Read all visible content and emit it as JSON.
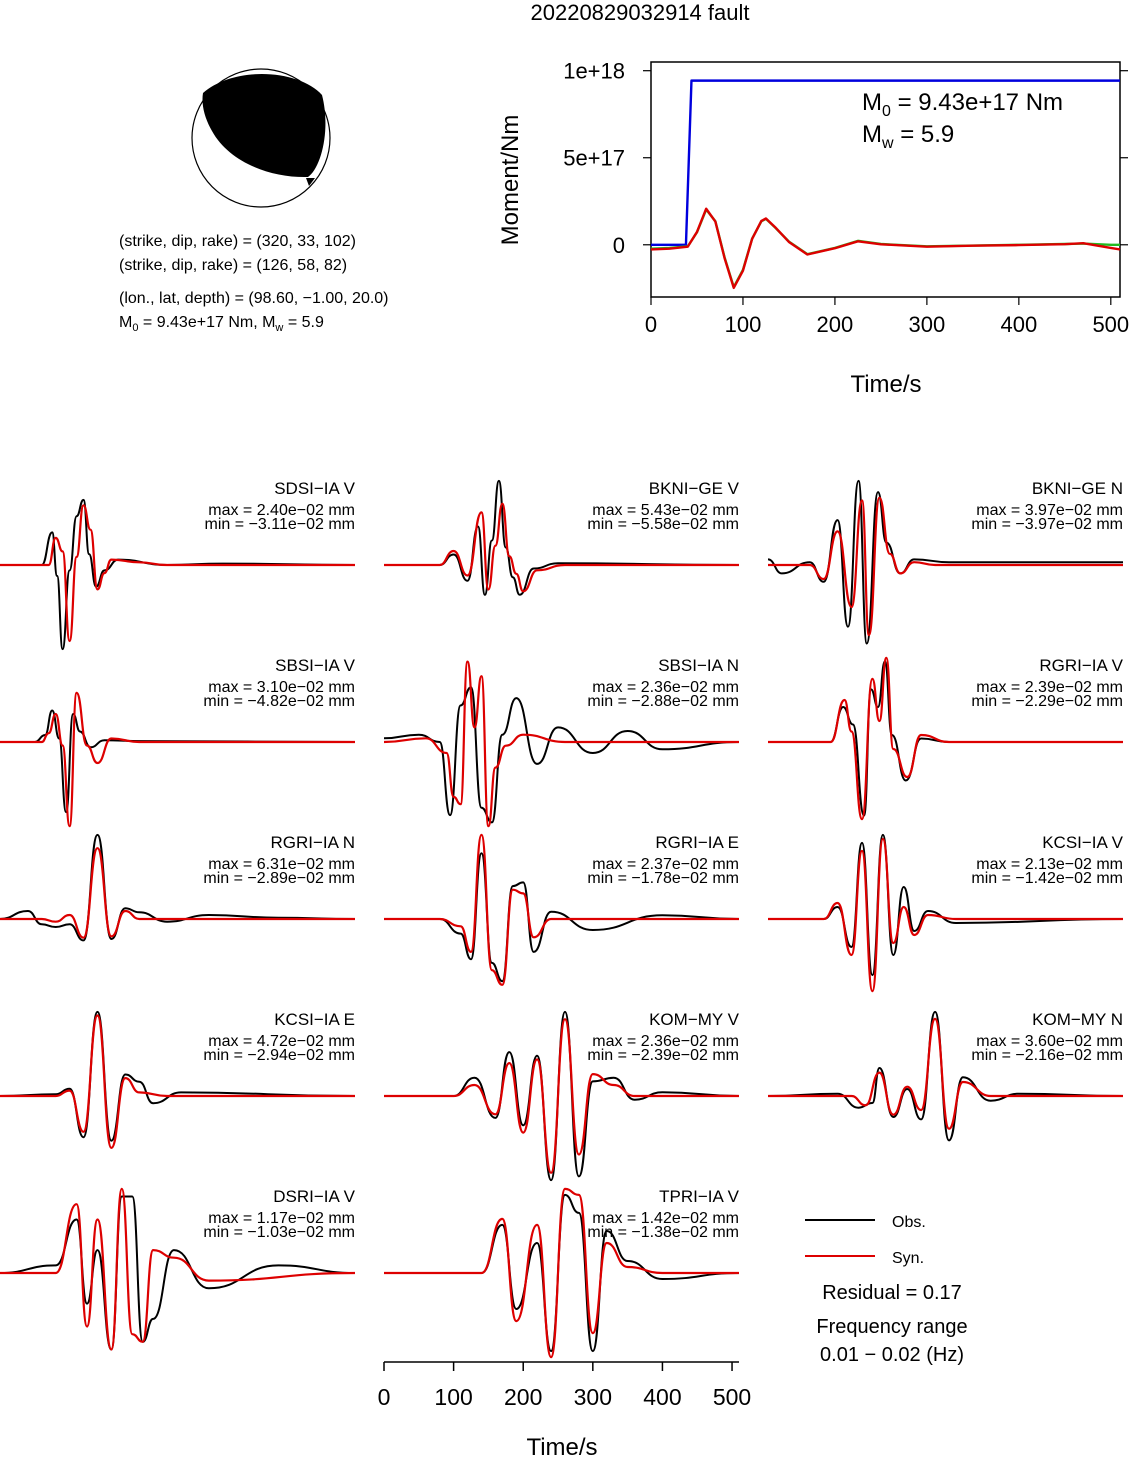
{
  "title": "20220829032914 fault",
  "mechanism": {
    "line1": "(strike, dip, rake) = (320, 33, 102)",
    "line2": "(strike, dip, rake) = (126, 58, 82)",
    "line3": "(lon., lat, depth) = (98.60, −1.00, 20.0)",
    "line4_prefix": "M",
    "line4_sub": "0",
    "line4_mid": " = 9.43e+17 Nm, M",
    "line4_sub2": "w",
    "line4_end": " = 5.9"
  },
  "moment_box": {
    "m0_prefix": "M",
    "m0_sub": "0",
    "m0_value": " = 9.43e+17 Nm",
    "mw_prefix": "M",
    "mw_sub": "w",
    "mw_value": " = 5.9"
  },
  "legend": {
    "obs": "Obs.",
    "syn": "Syn.",
    "residual": "Residual = 0.17",
    "freq_title": "Frequency range",
    "freq_value": "0.01 − 0.02 (Hz)"
  },
  "colors": {
    "obs": "#000000",
    "syn": "#dd0000",
    "cumulative": "#0000dd",
    "rate_green": "#22bb22"
  },
  "chart_data": [
    {
      "type": "line",
      "title": "",
      "xlabel": "Time/s",
      "ylabel": "Moment/Nm",
      "xlim": [
        0,
        510
      ],
      "ylim": [
        -300000000000000000,
        1050000000000000000
      ],
      "xticks": [
        "0",
        "100",
        "200",
        "300",
        "400",
        "500"
      ],
      "yticks": [
        "0",
        "5e+17",
        "1e+18"
      ],
      "series": [
        {
          "color": "#0000dd",
          "x": [
            0,
            38,
            44,
            510
          ],
          "y": [
            0,
            0,
            943000000000000000,
            943000000000000000
          ]
        },
        {
          "color": "#22bb22",
          "x": [
            0,
            20,
            40,
            50,
            60,
            70,
            80,
            90,
            100,
            110,
            120,
            125,
            135,
            150,
            170,
            200,
            225,
            250,
            300,
            350,
            400,
            450,
            470,
            500,
            510
          ],
          "y": [
            -25,
            -20,
            -10,
            80,
            225,
            150,
            -80,
            -270,
            -160,
            40,
            150,
            165,
            110,
            20,
            -60,
            -20,
            25,
            5,
            -10,
            -5,
            0,
            5,
            8,
            0,
            0
          ]
        },
        {
          "color": "#dd0000",
          "x": [
            0,
            20,
            40,
            50,
            60,
            70,
            80,
            90,
            100,
            110,
            120,
            125,
            135,
            150,
            170,
            200,
            225,
            250,
            300,
            350,
            400,
            450,
            470,
            500,
            510
          ],
          "y": [
            -30,
            -25,
            -12,
            82,
            230,
            148,
            -85,
            -275,
            -165,
            38,
            152,
            168,
            112,
            18,
            -62,
            -22,
            22,
            3,
            -12,
            -6,
            -2,
            4,
            10,
            -20,
            -30
          ]
        }
      ]
    },
    {
      "type": "line",
      "xlabel": "Time/s",
      "xlim": [
        0,
        510
      ],
      "xticks": [
        "0",
        "100",
        "200",
        "300",
        "400",
        "500"
      ],
      "panels": [
        {
          "station": "SDSI−IA V",
          "max": "max = 2.40e−02 mm",
          "min": "min = −3.11e−02 mm",
          "syn_x": [
            0,
            70,
            80,
            90,
            100,
            110,
            120,
            130,
            140,
            150,
            160,
            200,
            240,
            320,
            510
          ],
          "syn_y": [
            0,
            0,
            1.0,
            0.5,
            -2.8,
            0.3,
            2.2,
            1.3,
            -0.9,
            -0.3,
            0.2,
            0.1,
            0,
            0,
            0
          ],
          "obs_x": [
            0,
            60,
            75,
            82,
            90,
            100,
            110,
            120,
            128,
            138,
            150,
            170,
            240,
            320,
            510
          ],
          "obs_y": [
            0,
            0,
            1.2,
            -0.4,
            -3.1,
            -0.2,
            1.8,
            2.4,
            0.4,
            -0.8,
            -0.2,
            0.2,
            0,
            0.05,
            0
          ]
        },
        {
          "station": "BKNI−GE V",
          "max": "max = 5.43e−02 mm",
          "min": "min = −5.58e−02 mm",
          "syn_x": [
            0,
            80,
            100,
            120,
            140,
            150,
            160,
            170,
            180,
            190,
            200,
            220,
            260,
            510
          ],
          "syn_y": [
            0,
            0,
            0.8,
            -0.6,
            3.0,
            -1.4,
            1.1,
            3.5,
            0.5,
            -0.5,
            -1.5,
            -0.3,
            0,
            0
          ],
          "obs_x": [
            0,
            80,
            100,
            120,
            135,
            145,
            155,
            165,
            175,
            185,
            195,
            215,
            250,
            510
          ],
          "obs_y": [
            0,
            0,
            0.6,
            -0.9,
            2.2,
            -1.7,
            1.4,
            4.8,
            1.0,
            -0.7,
            -1.7,
            -0.2,
            0.1,
            0
          ]
        },
        {
          "station": "BKNI−GE N",
          "max": "max = 3.97e−02 mm",
          "min": "min = −3.97e−02 mm",
          "syn_x": [
            0,
            60,
            80,
            100,
            120,
            135,
            145,
            160,
            175,
            190,
            210,
            240,
            510
          ],
          "syn_y": [
            0,
            0,
            -0.5,
            1.2,
            -1.5,
            2.3,
            -2.5,
            2.4,
            0.4,
            -0.3,
            0.1,
            0,
            0
          ],
          "obs_x": [
            0,
            20,
            60,
            80,
            100,
            115,
            130,
            142,
            158,
            170,
            190,
            210,
            260,
            510
          ],
          "obs_y": [
            0.2,
            -0.3,
            0.1,
            -0.6,
            1.6,
            -2.2,
            3.0,
            -2.8,
            2.6,
            0.8,
            -0.3,
            0.2,
            0.1,
            0.1
          ]
        },
        {
          "station": "SBSI−IA V",
          "max": "max = 3.10e−02 mm",
          "min": "min = −4.82e−02 mm",
          "syn_x": [
            0,
            60,
            70,
            80,
            90,
            100,
            110,
            125,
            140,
            160,
            200,
            510
          ],
          "syn_y": [
            0,
            0,
            0.5,
            1.6,
            -0.2,
            -4.8,
            2.8,
            -0.2,
            -1.2,
            0.2,
            0,
            0
          ],
          "obs_x": [
            0,
            50,
            65,
            75,
            85,
            95,
            105,
            115,
            130,
            150,
            200,
            510
          ],
          "obs_y": [
            0,
            0,
            0.4,
            1.8,
            0.2,
            -4.0,
            1.6,
            0.6,
            -0.3,
            0.1,
            0.05,
            0
          ]
        },
        {
          "station": "SBSI−IA N",
          "max": "max = 2.36e−02 mm",
          "min": "min = −2.88e−02 mm",
          "syn_x": [
            0,
            60,
            90,
            100,
            110,
            120,
            130,
            140,
            150,
            160,
            175,
            200,
            260,
            510
          ],
          "syn_y": [
            0,
            0.1,
            -0.3,
            -1.5,
            -1.7,
            2.2,
            0.4,
            1.8,
            -2.3,
            -0.7,
            -0.1,
            0.2,
            0,
            0
          ],
          "obs_x": [
            0,
            50,
            80,
            95,
            110,
            125,
            140,
            155,
            170,
            190,
            220,
            250,
            300,
            350,
            400,
            510
          ],
          "obs_y": [
            0.1,
            0.2,
            0,
            -2.0,
            1.0,
            1.5,
            -1.8,
            -2.2,
            0.2,
            1.2,
            -0.6,
            0.4,
            -0.3,
            0.3,
            -0.2,
            0
          ]
        },
        {
          "station": "RGRI−IA V",
          "max": "max = 2.39e−02 mm",
          "min": "min = −2.29e−02 mm",
          "syn_x": [
            0,
            90,
            110,
            120,
            135,
            150,
            160,
            170,
            180,
            200,
            220,
            260,
            510
          ],
          "syn_y": [
            0,
            0,
            1.2,
            0.3,
            -2.2,
            1.8,
            0.6,
            2.4,
            -0.2,
            -1.0,
            0.2,
            0,
            0
          ],
          "obs_x": [
            0,
            90,
            108,
            122,
            138,
            148,
            158,
            168,
            178,
            198,
            220,
            260,
            510
          ],
          "obs_y": [
            0,
            0,
            1.0,
            0.5,
            -2.1,
            1.5,
            1.0,
            2.3,
            0.2,
            -1.1,
            0.1,
            0,
            0
          ]
        },
        {
          "station": "RGRI−IA N",
          "max": "max = 6.31e−02 mm",
          "min": "min = −2.89e−02 mm",
          "syn_x": [
            0,
            60,
            80,
            100,
            120,
            140,
            160,
            180,
            200,
            240,
            510
          ],
          "syn_y": [
            0,
            0,
            -0.2,
            0.3,
            -1.4,
            5.3,
            -1.3,
            0.6,
            0,
            0,
            0
          ],
          "obs_x": [
            0,
            40,
            60,
            80,
            100,
            120,
            140,
            160,
            180,
            200,
            240,
            300,
            400,
            510
          ],
          "obs_y": [
            0,
            0.6,
            -0.4,
            -0.6,
            -0.4,
            -1.6,
            6.3,
            -1.5,
            0.8,
            0.5,
            -0.2,
            0.3,
            0.1,
            0
          ]
        },
        {
          "station": "RGRI−IA E",
          "max": "max = 2.37e−02 mm",
          "min": "min = −1.78e−02 mm",
          "syn_x": [
            0,
            80,
            110,
            125,
            140,
            155,
            170,
            185,
            200,
            215,
            240,
            510
          ],
          "syn_y": [
            0,
            0,
            -0.2,
            -0.9,
            2.3,
            -1.4,
            -1.8,
            0.8,
            0.7,
            -0.5,
            0,
            0
          ],
          "obs_x": [
            0,
            80,
            110,
            125,
            140,
            155,
            170,
            185,
            200,
            215,
            240,
            300,
            400,
            510
          ],
          "obs_y": [
            0,
            0,
            -0.4,
            -1.1,
            1.8,
            -1.2,
            -1.7,
            0.9,
            1.0,
            -0.9,
            0.2,
            -0.3,
            0.1,
            0
          ]
        },
        {
          "station": "KCSI−IA V",
          "max": "max = 2.13e−02 mm",
          "min": "min = −1.42e−02 mm",
          "syn_x": [
            0,
            80,
            100,
            120,
            135,
            150,
            165,
            180,
            195,
            210,
            230,
            270,
            510
          ],
          "syn_y": [
            0,
            0,
            0.4,
            -0.9,
            1.7,
            -1.8,
            2.0,
            -0.6,
            0.3,
            -0.4,
            0.1,
            0,
            0
          ],
          "obs_x": [
            0,
            80,
            100,
            120,
            135,
            150,
            165,
            180,
            195,
            210,
            230,
            270,
            510
          ],
          "obs_y": [
            0,
            0,
            0.3,
            -0.7,
            1.9,
            -1.4,
            2.1,
            -0.9,
            0.8,
            -0.3,
            0.2,
            -0.1,
            0
          ]
        },
        {
          "station": "KCSI−IA E",
          "max": "max = 4.72e−02 mm",
          "min": "min = −2.94e−02 mm",
          "syn_x": [
            0,
            80,
            100,
            120,
            140,
            160,
            180,
            200,
            240,
            510
          ],
          "syn_y": [
            0,
            0,
            0.3,
            -2.0,
            4.5,
            -2.9,
            1.0,
            0.2,
            0,
            0
          ],
          "obs_x": [
            0,
            80,
            100,
            120,
            140,
            160,
            180,
            200,
            220,
            260,
            510
          ],
          "obs_y": [
            0,
            0.1,
            0.4,
            -2.3,
            4.7,
            -2.5,
            1.2,
            0.8,
            -0.4,
            0.2,
            0
          ]
        },
        {
          "station": "KOM−MY V",
          "max": "max = 2.36e−02 mm",
          "min": "min = −2.39e−02 mm",
          "syn_x": [
            0,
            100,
            130,
            160,
            180,
            200,
            220,
            240,
            260,
            280,
            300,
            330,
            360,
            400,
            510
          ],
          "syn_y": [
            0,
            0,
            0.3,
            -0.5,
            0.9,
            -1.0,
            1.0,
            -2.1,
            2.1,
            -1.6,
            0.6,
            0.3,
            0,
            0,
            0
          ],
          "obs_x": [
            0,
            100,
            130,
            160,
            180,
            200,
            220,
            240,
            260,
            280,
            300,
            330,
            360,
            400,
            510
          ],
          "obs_y": [
            0,
            0,
            0.5,
            -0.6,
            1.2,
            -0.8,
            1.1,
            -2.3,
            2.3,
            -2.2,
            0.4,
            0.5,
            -0.1,
            0.1,
            0
          ]
        },
        {
          "station": "KOM−MY N",
          "max": "max = 3.60e−02 mm",
          "min": "min = −2.16e−02 mm",
          "syn_x": [
            0,
            120,
            140,
            160,
            180,
            200,
            220,
            240,
            260,
            280,
            320,
            510
          ],
          "syn_y": [
            0,
            0,
            -0.4,
            1.0,
            -0.8,
            0.4,
            -0.6,
            3.3,
            -1.4,
            0.6,
            0,
            0
          ],
          "obs_x": [
            0,
            100,
            130,
            150,
            160,
            180,
            200,
            220,
            240,
            260,
            280,
            320,
            360,
            510
          ],
          "obs_y": [
            0,
            0.1,
            -0.5,
            -0.3,
            1.2,
            -0.9,
            0.3,
            -1.0,
            3.6,
            -1.9,
            0.8,
            -0.2,
            0.1,
            0
          ]
        },
        {
          "station": "DSRI−IA V",
          "max": "max = 1.17e−02 mm",
          "min": "min = −1.03e−02 mm",
          "syn_x": [
            0,
            80,
            110,
            125,
            140,
            160,
            175,
            190,
            205,
            220,
            250,
            300,
            510
          ],
          "syn_y": [
            0,
            0,
            0.9,
            -0.7,
            0.7,
            -1.0,
            1.1,
            -0.8,
            -0.9,
            0.3,
            0.2,
            -0.1,
            0
          ],
          "obs_x": [
            0,
            80,
            110,
            125,
            140,
            160,
            175,
            190,
            205,
            220,
            250,
            300,
            400,
            510
          ],
          "obs_y": [
            0,
            0.1,
            0.7,
            -0.4,
            0.3,
            -1.0,
            1.0,
            1.0,
            -0.9,
            -0.6,
            0.3,
            -0.2,
            0.1,
            0
          ]
        },
        {
          "station": "TPRI−IA V",
          "max": "max = 1.42e−02 mm",
          "min": "min = −1.38e−02 mm",
          "syn_x": [
            0,
            140,
            170,
            190,
            220,
            240,
            260,
            280,
            300,
            320,
            350,
            400,
            510
          ],
          "syn_y": [
            0,
            0,
            0.9,
            -0.8,
            0.8,
            -1.4,
            1.4,
            1.3,
            -1.0,
            0.5,
            0.1,
            0,
            0
          ],
          "obs_x": [
            0,
            140,
            170,
            190,
            220,
            240,
            260,
            280,
            300,
            320,
            350,
            400,
            510
          ],
          "obs_y": [
            0,
            0,
            0.8,
            -0.6,
            0.5,
            -1.3,
            1.3,
            1.0,
            -1.3,
            0.7,
            0.2,
            -0.1,
            0
          ]
        }
      ]
    }
  ]
}
